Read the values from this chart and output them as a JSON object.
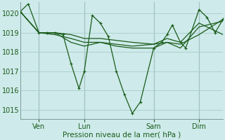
{
  "xlabel": "Pression niveau de la mer( hPa )",
  "ylim": [
    1014.5,
    1020.6
  ],
  "xlim": [
    0,
    76
  ],
  "bg_color": "#ceeaea",
  "grid_color": "#aacccc",
  "line_color": "#1a5c1a",
  "yticks": [
    1015,
    1016,
    1017,
    1018,
    1019,
    1020
  ],
  "xtick_positions": [
    7,
    24,
    50,
    67
  ],
  "xtick_labels": [
    "Ven",
    "Lun",
    "Sam",
    "Dim"
  ],
  "vline_positions": [
    7,
    24,
    50,
    67
  ],
  "series1": [
    [
      0,
      1020.1
    ],
    [
      3,
      1020.5
    ],
    [
      7,
      1019.0
    ],
    [
      10,
      1019.0
    ],
    [
      13,
      1019.0
    ],
    [
      16,
      1018.9
    ],
    [
      19,
      1017.4
    ],
    [
      22,
      1016.1
    ],
    [
      24,
      1017.0
    ],
    [
      27,
      1019.9
    ],
    [
      30,
      1019.5
    ],
    [
      33,
      1018.8
    ],
    [
      36,
      1017.0
    ],
    [
      39,
      1015.8
    ],
    [
      42,
      1014.8
    ],
    [
      45,
      1015.4
    ],
    [
      50,
      1018.2
    ],
    [
      53,
      1018.5
    ],
    [
      55,
      1018.9
    ],
    [
      57,
      1019.4
    ],
    [
      60,
      1018.5
    ],
    [
      62,
      1018.2
    ],
    [
      67,
      1020.2
    ],
    [
      70,
      1019.8
    ],
    [
      73,
      1019.0
    ],
    [
      76,
      1019.7
    ]
  ],
  "series2": [
    [
      0,
      1020.1
    ],
    [
      7,
      1019.0
    ],
    [
      13,
      1019.0
    ],
    [
      19,
      1018.5
    ],
    [
      24,
      1018.3
    ],
    [
      30,
      1018.5
    ],
    [
      36,
      1018.3
    ],
    [
      42,
      1018.2
    ],
    [
      50,
      1018.2
    ],
    [
      55,
      1018.5
    ],
    [
      60,
      1018.4
    ],
    [
      67,
      1018.9
    ],
    [
      76,
      1019.7
    ]
  ],
  "series3": [
    [
      0,
      1020.1
    ],
    [
      7,
      1019.0
    ],
    [
      13,
      1018.9
    ],
    [
      19,
      1018.7
    ],
    [
      24,
      1018.5
    ],
    [
      30,
      1018.5
    ],
    [
      36,
      1018.4
    ],
    [
      42,
      1018.3
    ],
    [
      50,
      1018.4
    ],
    [
      55,
      1018.5
    ],
    [
      60,
      1018.2
    ],
    [
      67,
      1019.3
    ],
    [
      76,
      1019.6
    ]
  ],
  "series4": [
    [
      0,
      1020.1
    ],
    [
      7,
      1019.0
    ],
    [
      13,
      1019.0
    ],
    [
      19,
      1018.9
    ],
    [
      24,
      1018.7
    ],
    [
      30,
      1018.7
    ],
    [
      36,
      1018.6
    ],
    [
      42,
      1018.5
    ],
    [
      50,
      1018.4
    ],
    [
      55,
      1018.7
    ],
    [
      60,
      1018.5
    ],
    [
      67,
      1019.5
    ],
    [
      76,
      1018.9
    ]
  ]
}
